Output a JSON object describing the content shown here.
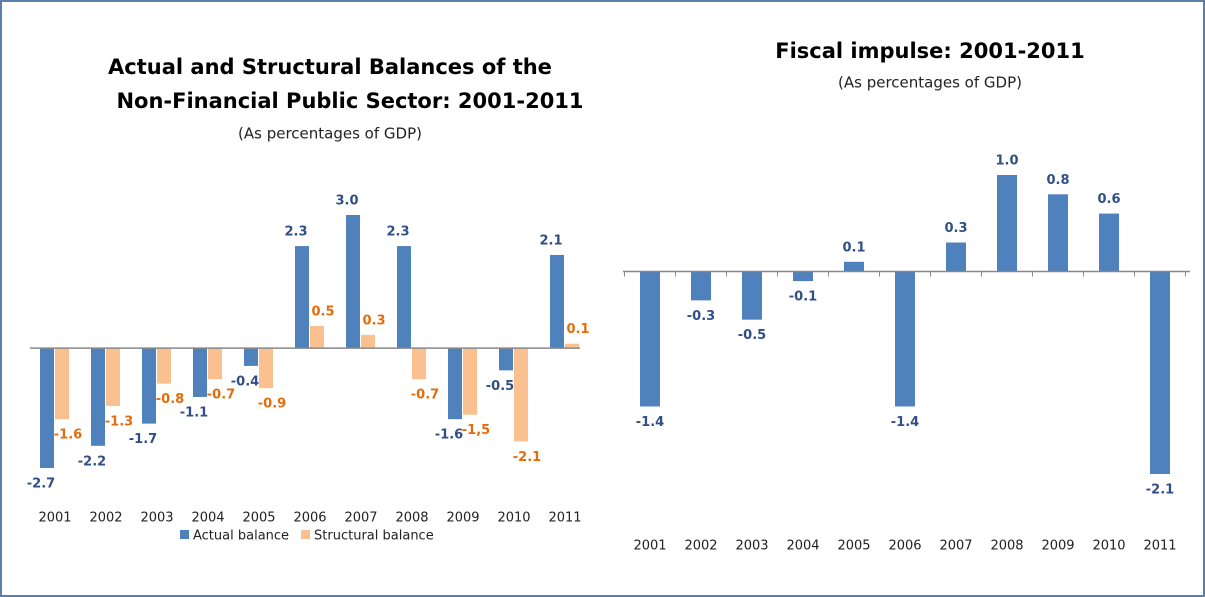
{
  "chart_data": [
    {
      "type": "bar",
      "title": [
        "Actual and Structural Balances of the",
        "Non-Financial Public Sector: 2001-2011"
      ],
      "subtitle": "(As percentages of GDP)",
      "categories": [
        "2001",
        "2002",
        "2003",
        "2004",
        "2005",
        "2006",
        "2007",
        "2008",
        "2009",
        "2010",
        "2011"
      ],
      "series": [
        {
          "name": "Actual balance",
          "color": "#4f81bd",
          "label_color": "#2f4f86",
          "values": [
            -2.7,
            -2.2,
            -1.7,
            -1.1,
            -0.4,
            2.3,
            3.0,
            2.3,
            -1.6,
            -0.5,
            2.1
          ],
          "value_labels": [
            "-2.7",
            "-2.2",
            "-1.7",
            "-1.1",
            "-0.4",
            "2.3",
            "3.0",
            "2.3",
            "-1.6",
            "-0.5",
            "2.1"
          ]
        },
        {
          "name": "Structural balance",
          "color": "#fac090",
          "label_color": "#e46c0a",
          "values": [
            -1.6,
            -1.3,
            -0.8,
            -0.7,
            -0.9,
            0.5,
            0.3,
            -0.7,
            -1.5,
            -2.1,
            0.1
          ],
          "value_labels": [
            "-1.6",
            "-1.3",
            "-0.8",
            "-0.7",
            "-0.9",
            "0.5",
            "0.3",
            "-0.7",
            "-1,5",
            "-2.1",
            "0.1"
          ]
        }
      ],
      "legend": "bottom"
    },
    {
      "type": "bar",
      "title": [
        "Fiscal impulse: 2001-2011"
      ],
      "subtitle": "(As percentages of GDP)",
      "categories": [
        "2001",
        "2002",
        "2003",
        "2004",
        "2005",
        "2006",
        "2007",
        "2008",
        "2009",
        "2010",
        "2011"
      ],
      "series": [
        {
          "color": "#4f81bd",
          "label_color": "#2f4f86",
          "values": [
            -1.4,
            -0.3,
            -0.5,
            -0.1,
            0.1,
            -1.4,
            0.3,
            1.0,
            0.8,
            0.6,
            -2.1
          ],
          "value_labels": [
            "-1.4",
            "-0.3",
            "-0.5",
            "-0.1",
            "0.1",
            "-1.4",
            "0.3",
            "1.0",
            "0.8",
            "0.6",
            "-2.1"
          ]
        }
      ]
    }
  ]
}
